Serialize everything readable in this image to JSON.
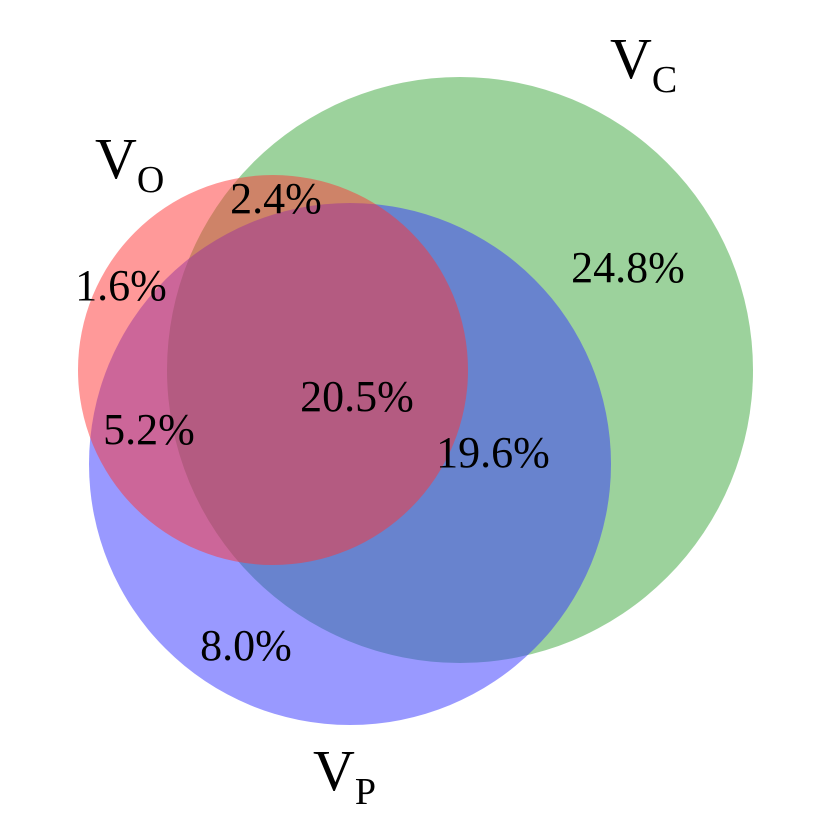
{
  "venn": {
    "sets": [
      {
        "id": "c",
        "name": "V",
        "subscript": "C",
        "color": "#2ca02c",
        "opacity": 0.47
      },
      {
        "id": "p",
        "name": "V",
        "subscript": "P",
        "color": "#3333ff",
        "opacity": 0.5
      },
      {
        "id": "o",
        "name": "V",
        "subscript": "O",
        "color": "#ff3333",
        "opacity": 0.5
      }
    ],
    "regions": {
      "o_only": "1.6%",
      "oc_only": "2.4%",
      "c_only": "24.8%",
      "all_three": "20.5%",
      "op_only": "5.2%",
      "cp_only": "19.6%",
      "p_only": "8.0%"
    }
  }
}
